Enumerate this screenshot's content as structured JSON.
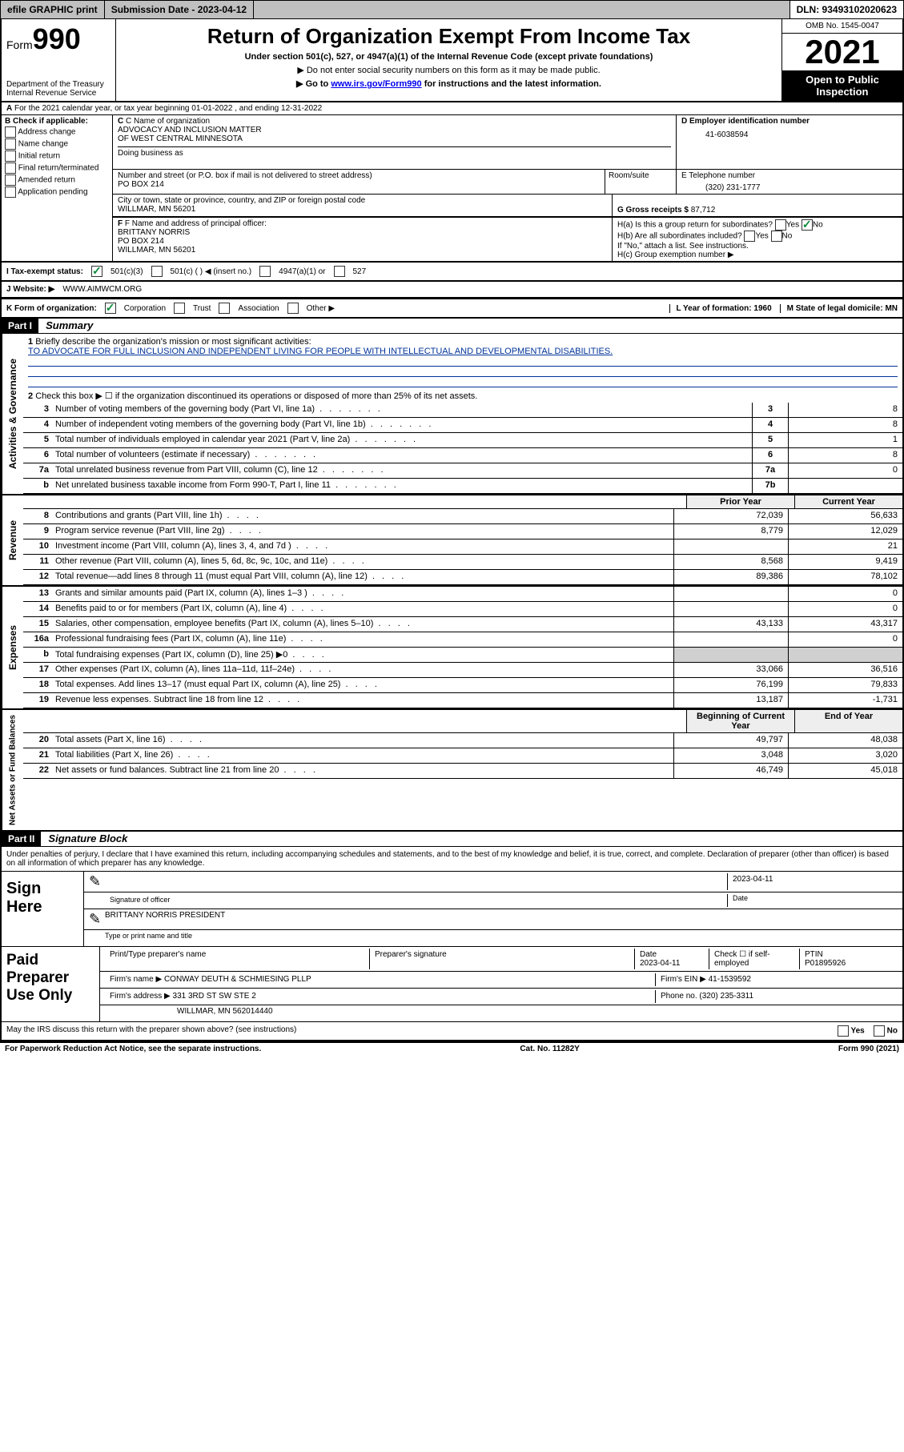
{
  "topbar": {
    "efile": "efile GRAPHIC print",
    "sub_label": "Submission Date - 2023-04-12",
    "dln": "DLN: 93493102020623"
  },
  "header": {
    "form_prefix": "Form",
    "form_num": "990",
    "dept": "Department of the Treasury",
    "irs": "Internal Revenue Service",
    "title": "Return of Organization Exempt From Income Tax",
    "sub": "Under section 501(c), 527, or 4947(a)(1) of the Internal Revenue Code (except private foundations)",
    "note1": "▶ Do not enter social security numbers on this form as it may be made public.",
    "note2_pre": "▶ Go to ",
    "note2_link": "www.irs.gov/Form990",
    "note2_post": " for instructions and the latest information.",
    "omb": "OMB No. 1545-0047",
    "year": "2021",
    "open": "Open to Public Inspection"
  },
  "line_a": "For the 2021 calendar year, or tax year beginning 01-01-2022   , and ending 12-31-2022",
  "b_label": "B Check if applicable:",
  "b_opts": [
    "Address change",
    "Name change",
    "Initial return",
    "Final return/terminated",
    "Amended return",
    "Application pending"
  ],
  "c": {
    "name_lbl": "C Name of organization",
    "name1": "ADVOCACY AND INCLUSION MATTER",
    "name2": "OF WEST CENTRAL MINNESOTA",
    "dba_lbl": "Doing business as",
    "addr_lbl": "Number and street (or P.O. box if mail is not delivered to street address)",
    "room_lbl": "Room/suite",
    "addr": "PO BOX 214",
    "city_lbl": "City or town, state or province, country, and ZIP or foreign postal code",
    "city": "WILLMAR, MN  56201"
  },
  "d": {
    "lbl": "D Employer identification number",
    "val": "41-6038594"
  },
  "e": {
    "lbl": "E Telephone number",
    "val": "(320) 231-1777"
  },
  "g": {
    "lbl": "G Gross receipts $",
    "val": "87,712"
  },
  "f": {
    "lbl": "F Name and address of principal officer:",
    "name": "BRITTANY NORRIS",
    "addr": "PO BOX 214",
    "city": "WILLMAR, MN  56201"
  },
  "h": {
    "a": "H(a)  Is this a group return for subordinates?",
    "b": "H(b)  Are all subordinates included?",
    "note": "If \"No,\" attach a list. See instructions.",
    "c": "H(c)  Group exemption number ▶",
    "yes": "Yes",
    "no": "No"
  },
  "i": {
    "lbl": "I    Tax-exempt status:",
    "o1": "501(c)(3)",
    "o2": "501(c) (  ) ◀ (insert no.)",
    "o3": "4947(a)(1) or",
    "o4": "527"
  },
  "j": {
    "lbl": "J   Website: ▶",
    "val": "WWW.AIMWCM.ORG"
  },
  "k": {
    "lbl": "K Form of organization:",
    "o1": "Corporation",
    "o2": "Trust",
    "o3": "Association",
    "o4": "Other ▶"
  },
  "l": {
    "lbl": "L Year of formation: 1960"
  },
  "m": {
    "lbl": "M State of legal domicile: MN"
  },
  "part1": {
    "hdr": "Part I",
    "title": "Summary",
    "q1": "Briefly describe the organization's mission or most significant activities:",
    "mission": "TO ADVOCATE FOR FULL INCLUSION AND INDEPENDENT LIVING FOR PEOPLE WITH INTELLECTUAL AND DEVELOPMENTAL DISABILITIES.",
    "q2": "Check this box ▶ ☐  if the organization discontinued its operations or disposed of more than 25% of its net assets.",
    "lines_gov": [
      {
        "n": "3",
        "d": "Number of voting members of the governing body (Part VI, line 1a)",
        "box": "3",
        "v": "8"
      },
      {
        "n": "4",
        "d": "Number of independent voting members of the governing body (Part VI, line 1b)",
        "box": "4",
        "v": "8"
      },
      {
        "n": "5",
        "d": "Total number of individuals employed in calendar year 2021 (Part V, line 2a)",
        "box": "5",
        "v": "1"
      },
      {
        "n": "6",
        "d": "Total number of volunteers (estimate if necessary)",
        "box": "6",
        "v": "8"
      },
      {
        "n": "7a",
        "d": "Total unrelated business revenue from Part VIII, column (C), line 12",
        "box": "7a",
        "v": "0"
      },
      {
        "n": "b",
        "d": "Net unrelated business taxable income from Form 990-T, Part I, line 11",
        "box": "7b",
        "v": ""
      }
    ],
    "col_prior": "Prior Year",
    "col_curr": "Current Year",
    "rev": [
      {
        "n": "8",
        "d": "Contributions and grants (Part VIII, line 1h)",
        "p": "72,039",
        "c": "56,633"
      },
      {
        "n": "9",
        "d": "Program service revenue (Part VIII, line 2g)",
        "p": "8,779",
        "c": "12,029"
      },
      {
        "n": "10",
        "d": "Investment income (Part VIII, column (A), lines 3, 4, and 7d )",
        "p": "",
        "c": "21"
      },
      {
        "n": "11",
        "d": "Other revenue (Part VIII, column (A), lines 5, 6d, 8c, 9c, 10c, and 11e)",
        "p": "8,568",
        "c": "9,419"
      },
      {
        "n": "12",
        "d": "Total revenue—add lines 8 through 11 (must equal Part VIII, column (A), line 12)",
        "p": "89,386",
        "c": "78,102"
      }
    ],
    "exp": [
      {
        "n": "13",
        "d": "Grants and similar amounts paid (Part IX, column (A), lines 1–3 )",
        "p": "",
        "c": "0"
      },
      {
        "n": "14",
        "d": "Benefits paid to or for members (Part IX, column (A), line 4)",
        "p": "",
        "c": "0"
      },
      {
        "n": "15",
        "d": "Salaries, other compensation, employee benefits (Part IX, column (A), lines 5–10)",
        "p": "43,133",
        "c": "43,317"
      },
      {
        "n": "16a",
        "d": "Professional fundraising fees (Part IX, column (A), line 11e)",
        "p": "",
        "c": "0"
      },
      {
        "n": "b",
        "d": "Total fundraising expenses (Part IX, column (D), line 25) ▶0",
        "p": "GRAY",
        "c": "GRAY"
      },
      {
        "n": "17",
        "d": "Other expenses (Part IX, column (A), lines 11a–11d, 11f–24e)",
        "p": "33,066",
        "c": "36,516"
      },
      {
        "n": "18",
        "d": "Total expenses. Add lines 13–17 (must equal Part IX, column (A), line 25)",
        "p": "76,199",
        "c": "79,833"
      },
      {
        "n": "19",
        "d": "Revenue less expenses. Subtract line 18 from line 12",
        "p": "13,187",
        "c": "-1,731"
      }
    ],
    "col_beg": "Beginning of Current Year",
    "col_end": "End of Year",
    "net": [
      {
        "n": "20",
        "d": "Total assets (Part X, line 16)",
        "p": "49,797",
        "c": "48,038"
      },
      {
        "n": "21",
        "d": "Total liabilities (Part X, line 26)",
        "p": "3,048",
        "c": "3,020"
      },
      {
        "n": "22",
        "d": "Net assets or fund balances. Subtract line 21 from line 20",
        "p": "46,749",
        "c": "45,018"
      }
    ],
    "side_gov": "Activities & Governance",
    "side_rev": "Revenue",
    "side_exp": "Expenses",
    "side_net": "Net Assets or Fund Balances"
  },
  "part2": {
    "hdr": "Part II",
    "title": "Signature Block",
    "declare": "Under penalties of perjury, I declare that I have examined this return, including accompanying schedules and statements, and to the best of my knowledge and belief, it is true, correct, and complete. Declaration of preparer (other than officer) is based on all information of which preparer has any knowledge."
  },
  "sign": {
    "left": "Sign Here",
    "date": "2023-04-11",
    "sig_lbl": "Signature of officer",
    "date_lbl": "Date",
    "name": "BRITTANY NORRIS  PRESIDENT",
    "name_lbl": "Type or print name and title"
  },
  "paid": {
    "left": "Paid Preparer Use Only",
    "h1": "Print/Type preparer's name",
    "h2": "Preparer's signature",
    "h3": "Date",
    "date": "2023-04-11",
    "h4": "Check ☐ if self-employed",
    "h5": "PTIN",
    "ptin": "P01895926",
    "firm_lbl": "Firm's name    ▶",
    "firm": "CONWAY DEUTH & SCHMIESING PLLP",
    "ein_lbl": "Firm's EIN ▶",
    "ein": "41-1539592",
    "addr_lbl": "Firm's address ▶",
    "addr": "331 3RD ST SW STE 2",
    "phone_lbl": "Phone no.",
    "phone": "(320) 235-3311",
    "city": "WILLMAR, MN  562014440"
  },
  "may": "May the IRS discuss this return with the preparer shown above? (see instructions)",
  "footer": {
    "left": "For Paperwork Reduction Act Notice, see the separate instructions.",
    "mid": "Cat. No. 11282Y",
    "right": "Form 990 (2021)"
  }
}
